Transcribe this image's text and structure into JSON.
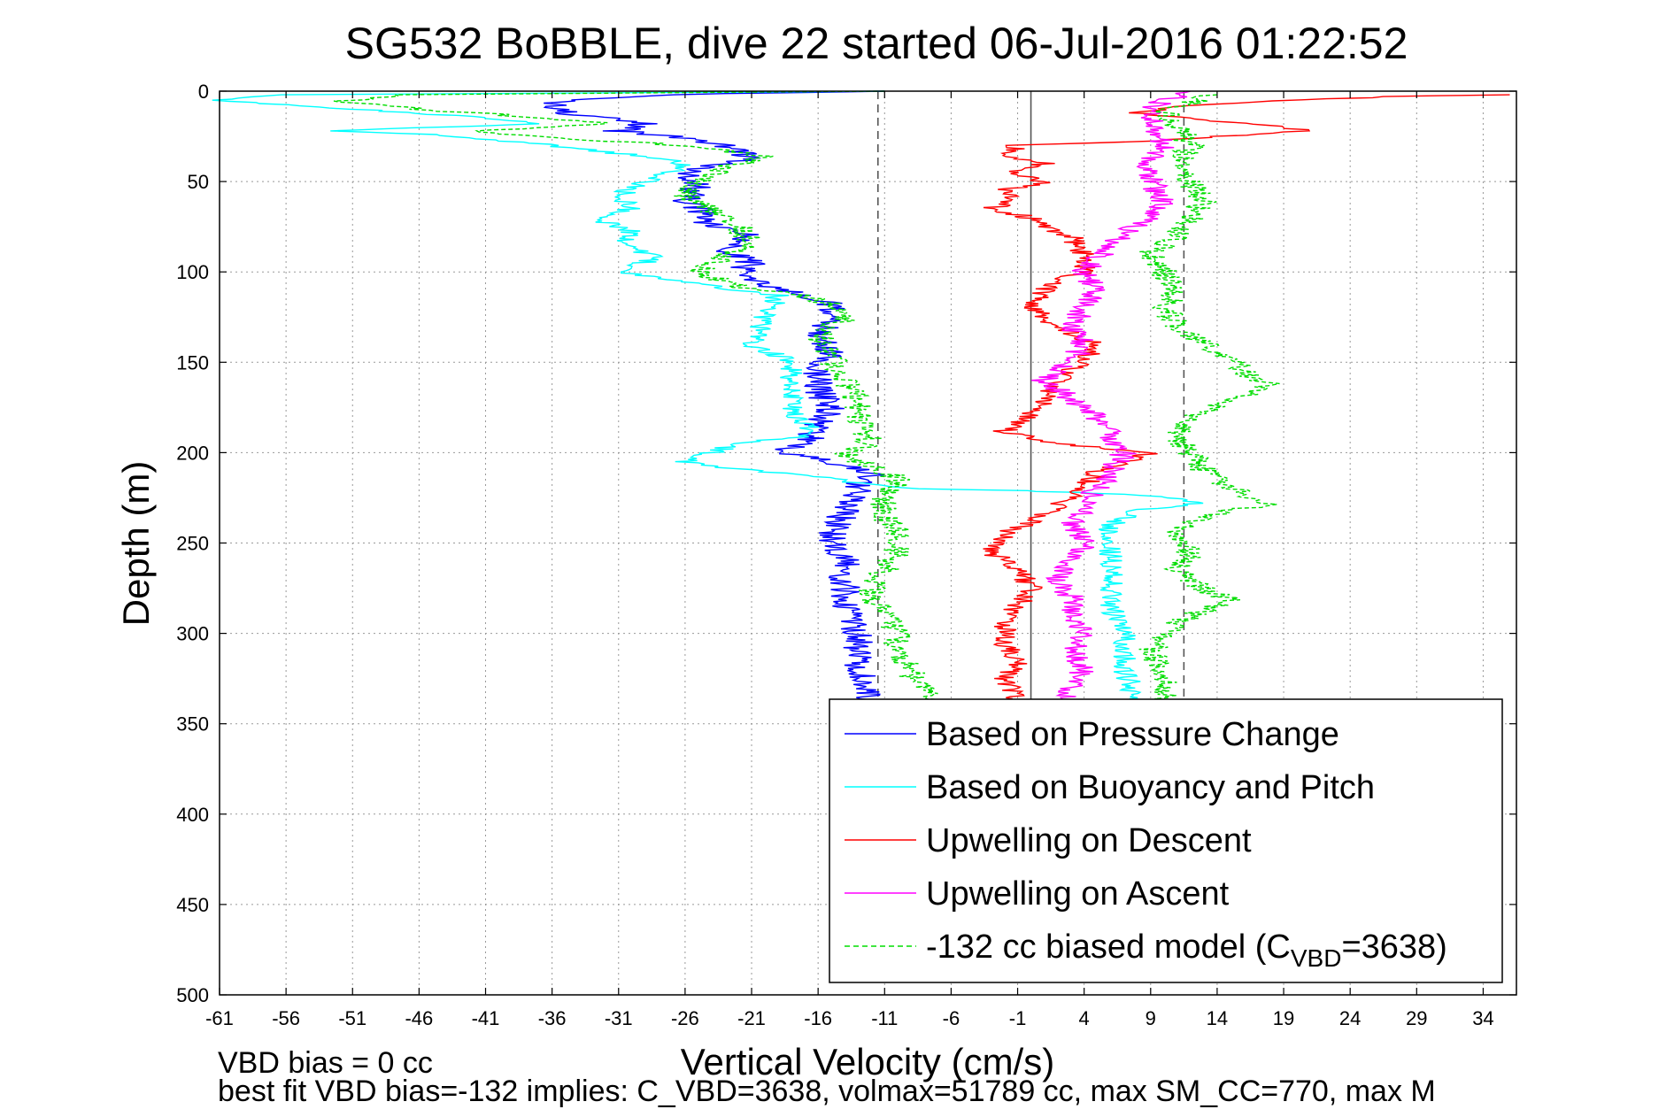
{
  "chart_data": {
    "type": "line",
    "title": "SG532 BoBBLE, dive 22 started 06-Jul-2016 01:22:52",
    "xlabel": "Vertical Velocity (cm/s)",
    "ylabel": "Depth (m)",
    "xlim": [
      -61,
      36.5
    ],
    "ylim": [
      0,
      500
    ],
    "y_reversed": true,
    "grid": true,
    "xticks": [
      -61,
      -56,
      -51,
      -46,
      -41,
      -36,
      -31,
      -26,
      -21,
      -16,
      -11,
      -6,
      -1,
      4,
      9,
      14,
      19,
      24,
      29,
      34
    ],
    "yticks": [
      0,
      50,
      100,
      150,
      200,
      250,
      300,
      350,
      400,
      450,
      500
    ],
    "legend_position": "bottom-right",
    "reference_lines": [
      {
        "x": -11.5,
        "style": "dashed",
        "color": "#555555"
      },
      {
        "x": 11.5,
        "style": "dashed",
        "color": "#555555"
      },
      {
        "x": 0.0,
        "style": "solid",
        "color": "#555555"
      }
    ],
    "series": [
      {
        "name": "Based on Pressure Change",
        "color": "#0000ff",
        "dash": "solid",
        "noise": 1.2,
        "points": [
          [
            -11,
            0
          ],
          [
            -28,
            2
          ],
          [
            -36,
            6
          ],
          [
            -35,
            12
          ],
          [
            -29,
            18
          ],
          [
            -31,
            22
          ],
          [
            -27,
            25
          ],
          [
            -23,
            30
          ],
          [
            -21,
            37
          ],
          [
            -26,
            45
          ],
          [
            -25,
            52
          ],
          [
            -26,
            60
          ],
          [
            -25,
            65
          ],
          [
            -24,
            75
          ],
          [
            -21,
            80
          ],
          [
            -23,
            88
          ],
          [
            -21,
            95
          ],
          [
            -22,
            100
          ],
          [
            -20,
            108
          ],
          [
            -17,
            113
          ],
          [
            -15,
            118
          ],
          [
            -15,
            125
          ],
          [
            -16,
            135
          ],
          [
            -15,
            145
          ],
          [
            -16,
            155
          ],
          [
            -16,
            165
          ],
          [
            -15,
            175
          ],
          [
            -16,
            185
          ],
          [
            -17,
            195
          ],
          [
            -19,
            200
          ],
          [
            -15,
            205
          ],
          [
            -12,
            210
          ],
          [
            -13,
            220
          ],
          [
            -14,
            232
          ],
          [
            -15,
            245
          ],
          [
            -14,
            260
          ],
          [
            -14,
            280
          ],
          [
            -13,
            300
          ],
          [
            -13,
            320
          ],
          [
            -12,
            333
          ],
          [
            -12,
            338
          ]
        ]
      },
      {
        "name": "Based on Buoyancy and Pitch",
        "color": "#00ffff",
        "dash": "solid",
        "noise": 0.9,
        "points": [
          [
            -11,
            0
          ],
          [
            -56,
            2
          ],
          [
            -61,
            5
          ],
          [
            -51,
            10
          ],
          [
            -42,
            14
          ],
          [
            -37,
            18
          ],
          [
            -53,
            22
          ],
          [
            -45,
            24
          ],
          [
            -40,
            27
          ],
          [
            -36,
            30
          ],
          [
            -27,
            38
          ],
          [
            -26,
            42
          ],
          [
            -29,
            50
          ],
          [
            -31,
            58
          ],
          [
            -30,
            65
          ],
          [
            -33,
            70
          ],
          [
            -30,
            78
          ],
          [
            -31,
            85
          ],
          [
            -28,
            92
          ],
          [
            -31,
            100
          ],
          [
            -24,
            108
          ],
          [
            -19,
            113
          ],
          [
            -20,
            125
          ],
          [
            -21,
            140
          ],
          [
            -18,
            150
          ],
          [
            -18,
            165
          ],
          [
            -18,
            178
          ],
          [
            -16,
            190
          ],
          [
            -22,
            195
          ],
          [
            -26,
            205
          ],
          [
            -21,
            210
          ],
          [
            -17,
            212
          ],
          [
            -12,
            218
          ],
          [
            -8,
            220
          ],
          [
            -1,
            221
          ],
          [
            3,
            222
          ],
          [
            7,
            223
          ],
          [
            10,
            225
          ],
          [
            13,
            228
          ],
          [
            8,
            232
          ],
          [
            6,
            240
          ],
          [
            6,
            255
          ],
          [
            6,
            270
          ],
          [
            6,
            285
          ],
          [
            7,
            300
          ],
          [
            7,
            320
          ],
          [
            8,
            338
          ]
        ]
      },
      {
        "name": "Upwelling on Descent",
        "color": "#ff0000",
        "dash": "solid",
        "noise": 0.9,
        "points": [
          [
            36,
            2
          ],
          [
            27,
            3
          ],
          [
            17,
            6
          ],
          [
            12,
            8
          ],
          [
            8,
            12
          ],
          [
            13,
            16
          ],
          [
            19,
            20
          ],
          [
            21,
            22
          ],
          [
            14,
            25
          ],
          [
            8,
            28
          ],
          [
            -1,
            30
          ],
          [
            -2,
            35
          ],
          [
            1,
            40
          ],
          [
            -1,
            45
          ],
          [
            1,
            50
          ],
          [
            -2,
            55
          ],
          [
            -1,
            60
          ],
          [
            -3,
            65
          ],
          [
            0,
            70
          ],
          [
            1,
            75
          ],
          [
            3,
            80
          ],
          [
            4,
            90
          ],
          [
            4,
            100
          ],
          [
            2,
            105
          ],
          [
            1,
            110
          ],
          [
            0,
            120
          ],
          [
            2,
            130
          ],
          [
            5,
            140
          ],
          [
            4,
            150
          ],
          [
            2,
            160
          ],
          [
            1,
            170
          ],
          [
            0,
            180
          ],
          [
            -2,
            188
          ],
          [
            2,
            195
          ],
          [
            6,
            198
          ],
          [
            9,
            200
          ],
          [
            7,
            205
          ],
          [
            5,
            210
          ],
          [
            4,
            220
          ],
          [
            2,
            230
          ],
          [
            0,
            238
          ],
          [
            -2,
            245
          ],
          [
            -3,
            255
          ],
          [
            -1,
            265
          ],
          [
            0,
            275
          ],
          [
            -1,
            285
          ],
          [
            -2,
            295
          ],
          [
            -2,
            305
          ],
          [
            -1,
            315
          ],
          [
            -2,
            325
          ],
          [
            -1,
            335
          ],
          [
            -1,
            338
          ]
        ]
      },
      {
        "name": "Upwelling on Ascent",
        "color": "#ff00ff",
        "dash": "solid",
        "noise": 1.0,
        "points": [
          [
            12,
            0
          ],
          [
            10,
            5
          ],
          [
            9,
            10
          ],
          [
            9,
            20
          ],
          [
            10,
            30
          ],
          [
            9,
            40
          ],
          [
            9,
            50
          ],
          [
            10,
            60
          ],
          [
            9,
            70
          ],
          [
            7,
            78
          ],
          [
            6,
            85
          ],
          [
            5,
            92
          ],
          [
            4,
            100
          ],
          [
            5,
            110
          ],
          [
            4,
            120
          ],
          [
            3,
            130
          ],
          [
            4,
            140
          ],
          [
            3,
            150
          ],
          [
            1,
            160
          ],
          [
            3,
            170
          ],
          [
            5,
            180
          ],
          [
            6,
            190
          ],
          [
            7,
            200
          ],
          [
            6,
            210
          ],
          [
            5,
            220
          ],
          [
            4,
            230
          ],
          [
            3,
            240
          ],
          [
            4,
            250
          ],
          [
            3,
            260
          ],
          [
            2,
            270
          ],
          [
            3,
            280
          ],
          [
            3,
            290
          ],
          [
            4,
            300
          ],
          [
            3,
            310
          ],
          [
            4,
            320
          ],
          [
            3,
            330
          ],
          [
            3,
            338
          ]
        ]
      },
      {
        "name": "-132 cc biased model (C_VBD=3638)",
        "color": "#00dd00",
        "dash": "dashed",
        "noise": 1.1,
        "points": [
          [
            -11,
            0
          ],
          [
            -48,
            2
          ],
          [
            -52,
            6
          ],
          [
            -46,
            10
          ],
          [
            -38,
            14
          ],
          [
            -32,
            18
          ],
          [
            -42,
            22
          ],
          [
            -35,
            26
          ],
          [
            -26,
            30
          ],
          [
            -20,
            36
          ],
          [
            -23,
            42
          ],
          [
            -25,
            50
          ],
          [
            -26,
            58
          ],
          [
            -24,
            66
          ],
          [
            -22,
            75
          ],
          [
            -21,
            85
          ],
          [
            -23,
            92
          ],
          [
            -25,
            100
          ],
          [
            -22,
            108
          ],
          [
            -17,
            113
          ],
          [
            -15,
            118
          ],
          [
            -14,
            125
          ],
          [
            -16,
            135
          ],
          [
            -15,
            148
          ],
          [
            -14,
            160
          ],
          [
            -13,
            172
          ],
          [
            -13,
            182
          ],
          [
            -12,
            195
          ],
          [
            -14,
            200
          ],
          [
            -13,
            205
          ],
          [
            -11,
            210
          ],
          [
            -10,
            215
          ],
          [
            -11,
            225
          ],
          [
            -11,
            235
          ],
          [
            -10,
            245
          ],
          [
            -10,
            255
          ],
          [
            -11,
            265
          ],
          [
            -12,
            278
          ],
          [
            -11,
            290
          ],
          [
            -10,
            300
          ],
          [
            -10,
            312
          ],
          [
            -9,
            322
          ],
          [
            -8,
            332
          ],
          [
            -7,
            338
          ]
        ]
      },
      {
        "name": "",
        "color": "#00dd00",
        "dash": "dashed",
        "noise": 1.1,
        "points": [
          [
            14,
            2
          ],
          [
            12,
            6
          ],
          [
            10,
            12
          ],
          [
            11,
            20
          ],
          [
            12,
            30
          ],
          [
            11,
            40
          ],
          [
            12,
            50
          ],
          [
            13,
            60
          ],
          [
            12,
            70
          ],
          [
            11,
            80
          ],
          [
            9,
            90
          ],
          [
            10,
            100
          ],
          [
            11,
            110
          ],
          [
            10,
            120
          ],
          [
            11,
            130
          ],
          [
            13,
            140
          ],
          [
            15,
            150
          ],
          [
            18,
            163
          ],
          [
            15,
            172
          ],
          [
            12,
            180
          ],
          [
            11,
            190
          ],
          [
            12,
            200
          ],
          [
            13,
            210
          ],
          [
            15,
            220
          ],
          [
            18,
            228
          ],
          [
            13,
            235
          ],
          [
            11,
            245
          ],
          [
            12,
            255
          ],
          [
            11,
            265
          ],
          [
            13,
            275
          ],
          [
            15,
            282
          ],
          [
            12,
            290
          ],
          [
            10,
            300
          ],
          [
            9,
            310
          ],
          [
            10,
            320
          ],
          [
            10,
            330
          ],
          [
            10,
            338
          ]
        ]
      }
    ],
    "legend": [
      {
        "label": "Based on Pressure Change",
        "color": "#0000ff",
        "dash": "solid"
      },
      {
        "label": "Based on Buoyancy and Pitch",
        "color": "#00ffff",
        "dash": "solid"
      },
      {
        "label": "Upwelling on Descent",
        "color": "#ff0000",
        "dash": "solid"
      },
      {
        "label": "Upwelling on Ascent",
        "color": "#ff00ff",
        "dash": "solid"
      },
      {
        "label_prefix": "-132 cc biased model (C",
        "label_sub": "VBD",
        "label_suffix": "=3638)",
        "color": "#00dd00",
        "dash": "dashed"
      }
    ]
  },
  "notes": {
    "line1": "VBD bias = 0 cc",
    "line2": "best fit VBD bias=-132 implies: C_VBD=3638, volmax=51789 cc, max SM_CC=770, max M"
  }
}
